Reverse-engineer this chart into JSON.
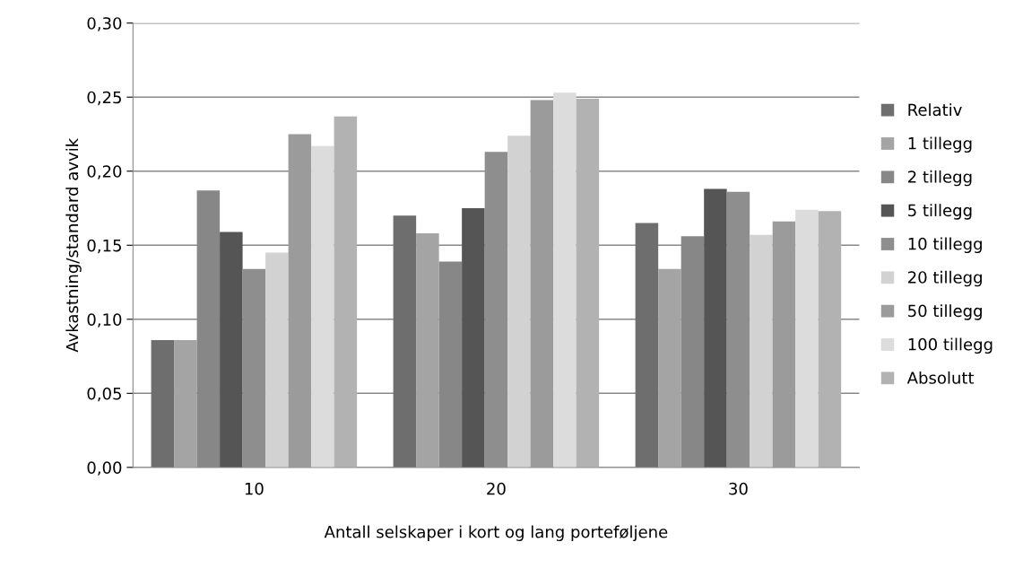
{
  "chart_data": {
    "type": "bar",
    "xlabel": "Antall selskaper i kort og lang porteføljene",
    "ylabel": "Avkastning/standard avvik",
    "categories": [
      "10",
      "20",
      "30"
    ],
    "series": [
      {
        "name": "Relativ",
        "color": "#6e6e6e",
        "values": [
          0.086,
          0.17,
          0.165
        ]
      },
      {
        "name": "1 tillegg",
        "color": "#a4a4a4",
        "values": [
          0.086,
          0.158,
          0.134
        ]
      },
      {
        "name": "2 tillegg",
        "color": "#878787",
        "values": [
          0.187,
          0.139,
          0.156
        ]
      },
      {
        "name": "5 tillegg",
        "color": "#555555",
        "values": [
          0.159,
          0.175,
          0.188
        ]
      },
      {
        "name": "10 tillegg",
        "color": "#8e8e8e",
        "values": [
          0.134,
          0.213,
          0.186
        ]
      },
      {
        "name": "20 tillegg",
        "color": "#d2d2d2",
        "values": [
          0.145,
          0.224,
          0.157
        ]
      },
      {
        "name": "50 tillegg",
        "color": "#9b9b9b",
        "values": [
          0.225,
          0.248,
          0.166
        ]
      },
      {
        "name": "100 tillegg",
        "color": "#dcdcdc",
        "values": [
          0.217,
          0.253,
          0.174
        ]
      },
      {
        "name": "Absolutt",
        "color": "#b2b2b2",
        "values": [
          0.237,
          0.249,
          0.173
        ]
      }
    ],
    "ylim": [
      0,
      0.3
    ],
    "yticks": [
      {
        "value": 0,
        "label": "0,00"
      },
      {
        "value": 0.05,
        "label": "0,05"
      },
      {
        "value": 0.1,
        "label": "0,10"
      },
      {
        "value": 0.15,
        "label": "0,15"
      },
      {
        "value": 0.2,
        "label": "0,20"
      },
      {
        "value": 0.25,
        "label": "0,25"
      },
      {
        "value": 0.3,
        "label": "0,30"
      }
    ],
    "grid": "y",
    "legend": "right"
  }
}
